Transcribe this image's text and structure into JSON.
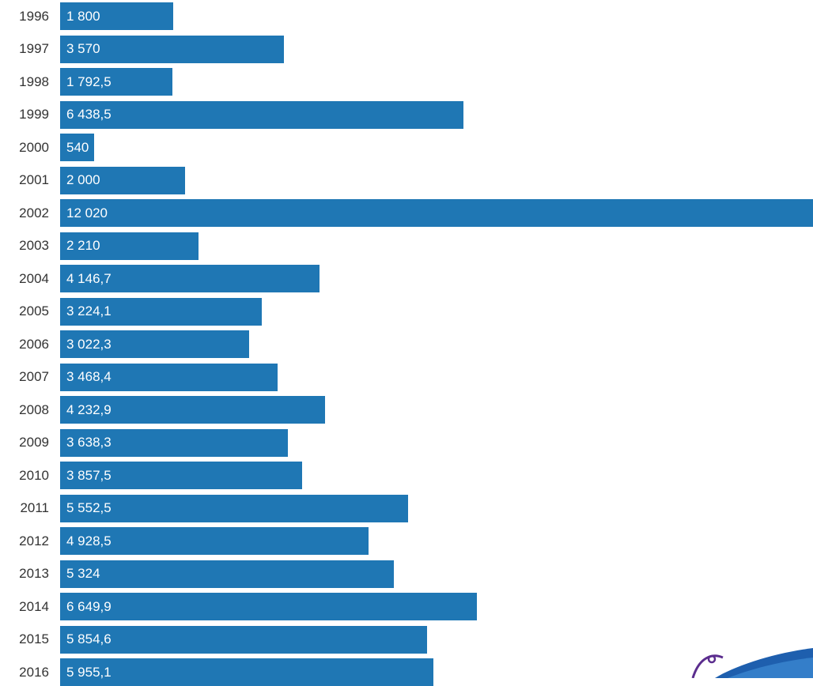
{
  "chart_data": {
    "type": "bar",
    "orientation": "horizontal",
    "categories": [
      "1996",
      "1997",
      "1998",
      "1999",
      "2000",
      "2001",
      "2002",
      "2003",
      "2004",
      "2005",
      "2006",
      "2007",
      "2008",
      "2009",
      "2010",
      "2011",
      "2012",
      "2013",
      "2014",
      "2015",
      "2016"
    ],
    "values": [
      1800,
      3570,
      1792.5,
      6438.5,
      540,
      2000,
      12020,
      2210,
      4146.7,
      3224.1,
      3022.3,
      3468.4,
      4232.9,
      3638.3,
      3857.5,
      5552.5,
      4928.5,
      5324,
      6649.9,
      5854.6,
      5955.1
    ],
    "value_labels": [
      "1 800",
      "3 570",
      "1 792,5",
      "6 438,5",
      "540",
      "2 000",
      "12 020",
      "2 210",
      "4 146,7",
      "3 224,1",
      "3 022,3",
      "3 468,4",
      "4 232,9",
      "3 638,3",
      "3 857,5",
      "5 552,5",
      "4 928,5",
      "5 324",
      "6 649,9",
      "5 854,6",
      "5 955,1"
    ],
    "xlim": [
      0,
      12020
    ],
    "grid": false,
    "legend": "none",
    "bar_color": "#1f77b4",
    "title": "",
    "xlabel": "",
    "ylabel": ""
  },
  "logo": {
    "icon": "bird-wing-logo-icon",
    "color_primary": "#1e5fae",
    "color_secondary": "#5b2d8e"
  }
}
